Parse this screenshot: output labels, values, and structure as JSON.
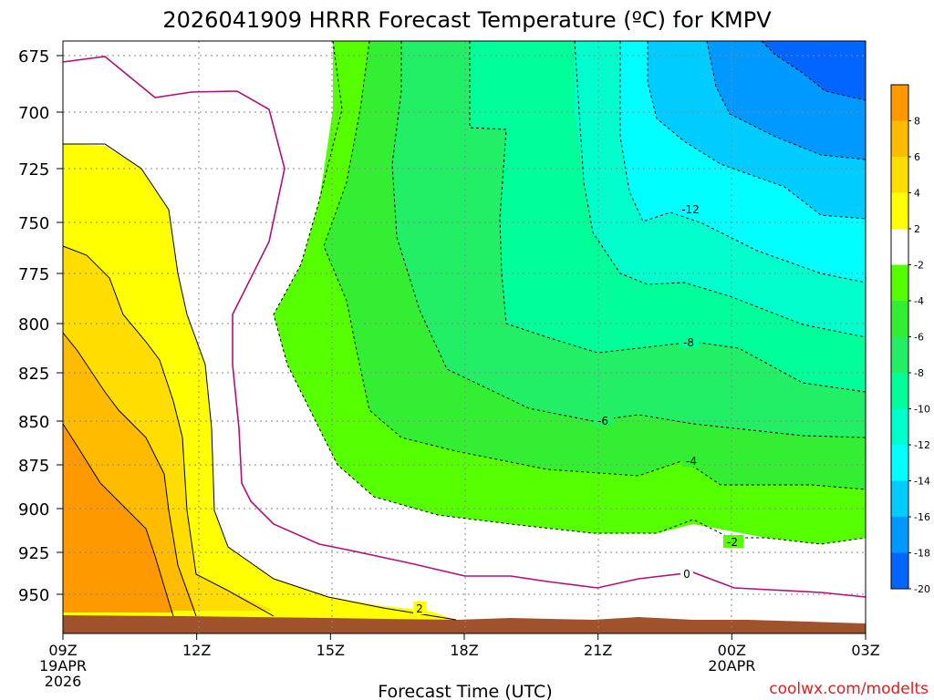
{
  "title": "2026041909 HRRR Forecast Temperature (ºC) for KMPV",
  "chart_data": {
    "type": "contour",
    "title": "2026041909 HRRR Forecast Temperature (ºC) for KMPV",
    "xlabel": "Forecast Time (UTC)",
    "ylabel": "",
    "x_ticks": [
      "09Z",
      "12Z",
      "15Z",
      "18Z",
      "21Z",
      "00Z",
      "03Z"
    ],
    "x_date_labels": [
      {
        "tick": "09Z",
        "lines": [
          "19APR",
          "2026"
        ]
      },
      {
        "tick": "00Z",
        "lines": [
          "20APR"
        ]
      }
    ],
    "y_ticks": [
      675,
      700,
      725,
      750,
      775,
      800,
      825,
      850,
      875,
      900,
      925,
      950
    ],
    "y_axis": "pressure (hPa), inverted",
    "contour_labels": [
      "2",
      "0",
      "-2",
      "-4",
      "-6",
      "-8",
      "-12"
    ],
    "colorbar": {
      "labels": [
        "8",
        "6",
        "4",
        "2",
        "-2",
        "-4",
        "-6",
        "-8",
        "-10",
        "-12",
        "-14",
        "-16",
        "-18",
        "-20"
      ],
      "colors": [
        "#ff9900",
        "#ffbb00",
        "#ffdd00",
        "#ffff00",
        "#ffffff",
        "#55ff00",
        "#33ee33",
        "#22ee66",
        "#00ff99",
        "#00ffcc",
        "#00ffff",
        "#00ccff",
        "#0099ff",
        "#0066ff"
      ]
    },
    "grid": true,
    "terrain_color": "#a0522d"
  },
  "credit": "coolwx.com/modelts"
}
